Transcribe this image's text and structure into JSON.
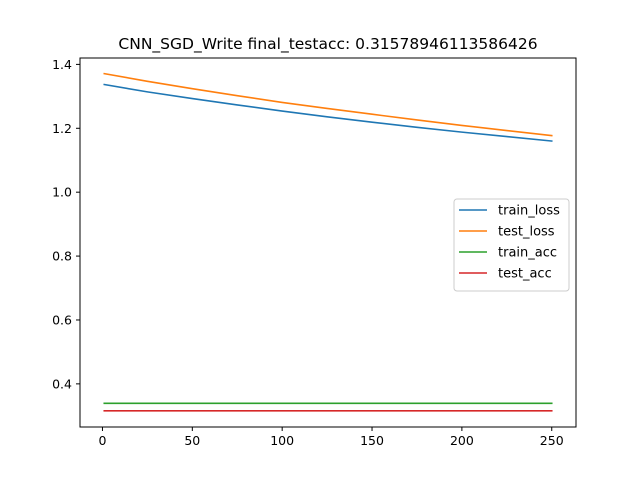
{
  "chart_data": {
    "type": "line",
    "title": "CNN_SGD_Write  final_testacc: 0.31578946113586426",
    "xlabel": "",
    "ylabel": "",
    "xlim": [
      -12.5,
      263.5
    ],
    "ylim": [
      0.265,
      1.42
    ],
    "xticks": [
      0,
      50,
      100,
      150,
      200,
      250
    ],
    "xtick_labels": [
      "0",
      "50",
      "100",
      "150",
      "200",
      "250"
    ],
    "yticks": [
      0.4,
      0.6,
      0.8,
      1.0,
      1.2,
      1.4
    ],
    "ytick_labels": [
      "0.4",
      "0.6",
      "0.8",
      "1.0",
      "1.2",
      "1.4"
    ],
    "grid": false,
    "legend_position": "center-right",
    "series": [
      {
        "name": "train_loss",
        "color": "#1f77b4",
        "x": [
          1,
          25,
          50,
          75,
          100,
          125,
          150,
          175,
          200,
          225,
          250
        ],
        "y": [
          1.337,
          1.314,
          1.293,
          1.273,
          1.254,
          1.236,
          1.219,
          1.203,
          1.188,
          1.174,
          1.16
        ]
      },
      {
        "name": "test_loss",
        "color": "#ff7f0e",
        "x": [
          1,
          25,
          50,
          75,
          100,
          125,
          150,
          175,
          200,
          225,
          250
        ],
        "y": [
          1.371,
          1.347,
          1.324,
          1.302,
          1.281,
          1.262,
          1.244,
          1.226,
          1.209,
          1.193,
          1.177
        ]
      },
      {
        "name": "train_acc",
        "color": "#2ca02c",
        "x": [
          1,
          250
        ],
        "y": [
          0.339,
          0.339
        ]
      },
      {
        "name": "test_acc",
        "color": "#d62728",
        "x": [
          1,
          250
        ],
        "y": [
          0.3158,
          0.3158
        ]
      }
    ]
  }
}
